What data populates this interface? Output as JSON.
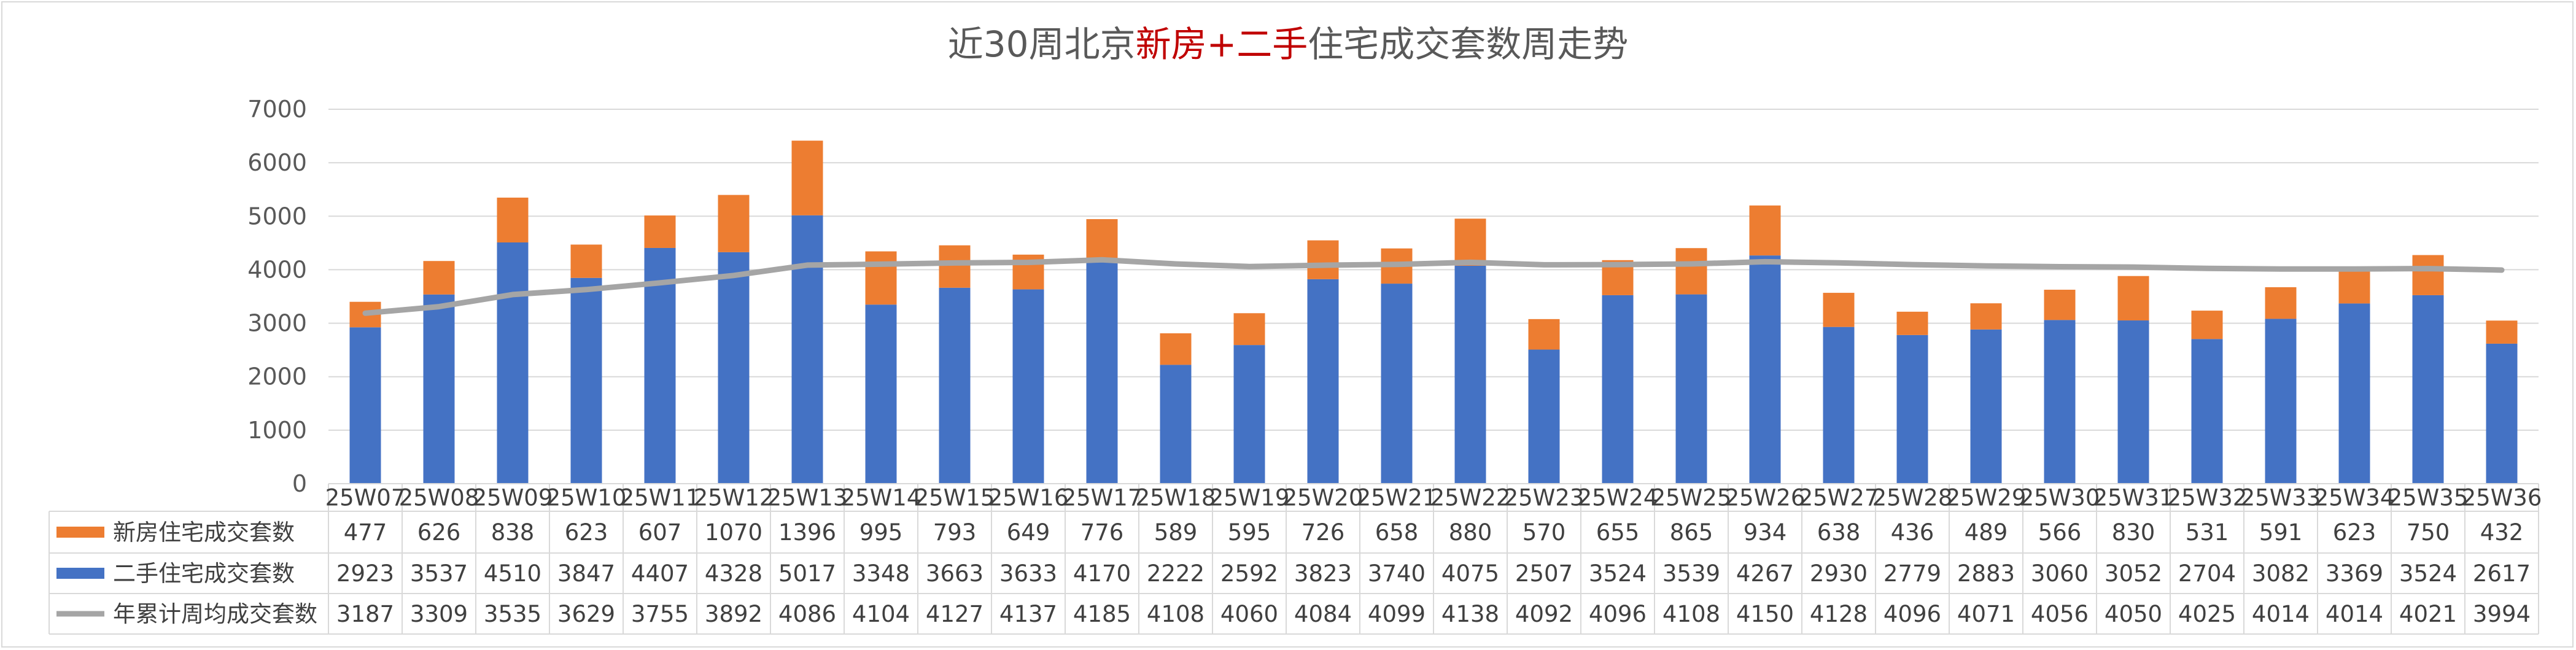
{
  "title_parts": [
    {
      "text": "近30周北京",
      "color": "#595959"
    },
    {
      "text": "新房+二手",
      "color": "#c00000"
    },
    {
      "text": "住宅成交套数周走势",
      "color": "#595959"
    }
  ],
  "colors": {
    "new": "#ed7d31",
    "second": "#4472c4",
    "avg": "#a5a5a5",
    "grid": "#d9d9d9",
    "text": "#595959"
  },
  "chart_data": {
    "type": "bar",
    "stacked": true,
    "categories": [
      "25W07",
      "25W08",
      "25W09",
      "25W10",
      "25W11",
      "25W12",
      "25W13",
      "25W14",
      "25W15",
      "25W16",
      "25W17",
      "25W18",
      "25W19",
      "25W20",
      "25W21",
      "25W22",
      "25W23",
      "25W24",
      "25W25",
      "25W26",
      "25W27",
      "25W28",
      "25W29",
      "25W30",
      "25W31",
      "25W32",
      "25W33",
      "25W34",
      "25W35",
      "25W36"
    ],
    "series": [
      {
        "name": "新房住宅成交套数",
        "kind": "bar",
        "color": "#ed7d31",
        "values": [
          477,
          626,
          838,
          623,
          607,
          1070,
          1396,
          995,
          793,
          649,
          776,
          589,
          595,
          726,
          658,
          880,
          570,
          655,
          865,
          934,
          638,
          436,
          489,
          566,
          830,
          531,
          591,
          623,
          750,
          432
        ]
      },
      {
        "name": "二手住宅成交套数",
        "kind": "bar",
        "color": "#4472c4",
        "values": [
          2923,
          3537,
          4510,
          3847,
          4407,
          4328,
          5017,
          3348,
          3663,
          3633,
          4170,
          2222,
          2592,
          3823,
          3740,
          4075,
          2507,
          3524,
          3539,
          4267,
          2930,
          2779,
          2883,
          3060,
          3052,
          2704,
          3082,
          3369,
          3524,
          2617
        ]
      },
      {
        "name": "年累计周均成交套数",
        "kind": "line",
        "color": "#a5a5a5",
        "values": [
          3187,
          3309,
          3535,
          3629,
          3755,
          3892,
          4086,
          4104,
          4127,
          4137,
          4185,
          4108,
          4060,
          4084,
          4099,
          4138,
          4092,
          4096,
          4108,
          4150,
          4128,
          4096,
          4071,
          4056,
          4050,
          4025,
          4014,
          4014,
          4021,
          3994
        ]
      }
    ],
    "yticks": [
      "0",
      "1000",
      "2000",
      "3000",
      "4000",
      "5000",
      "6000",
      "7000"
    ],
    "ylim": [
      0,
      7000
    ],
    "grid": true,
    "legend": "data-table"
  }
}
